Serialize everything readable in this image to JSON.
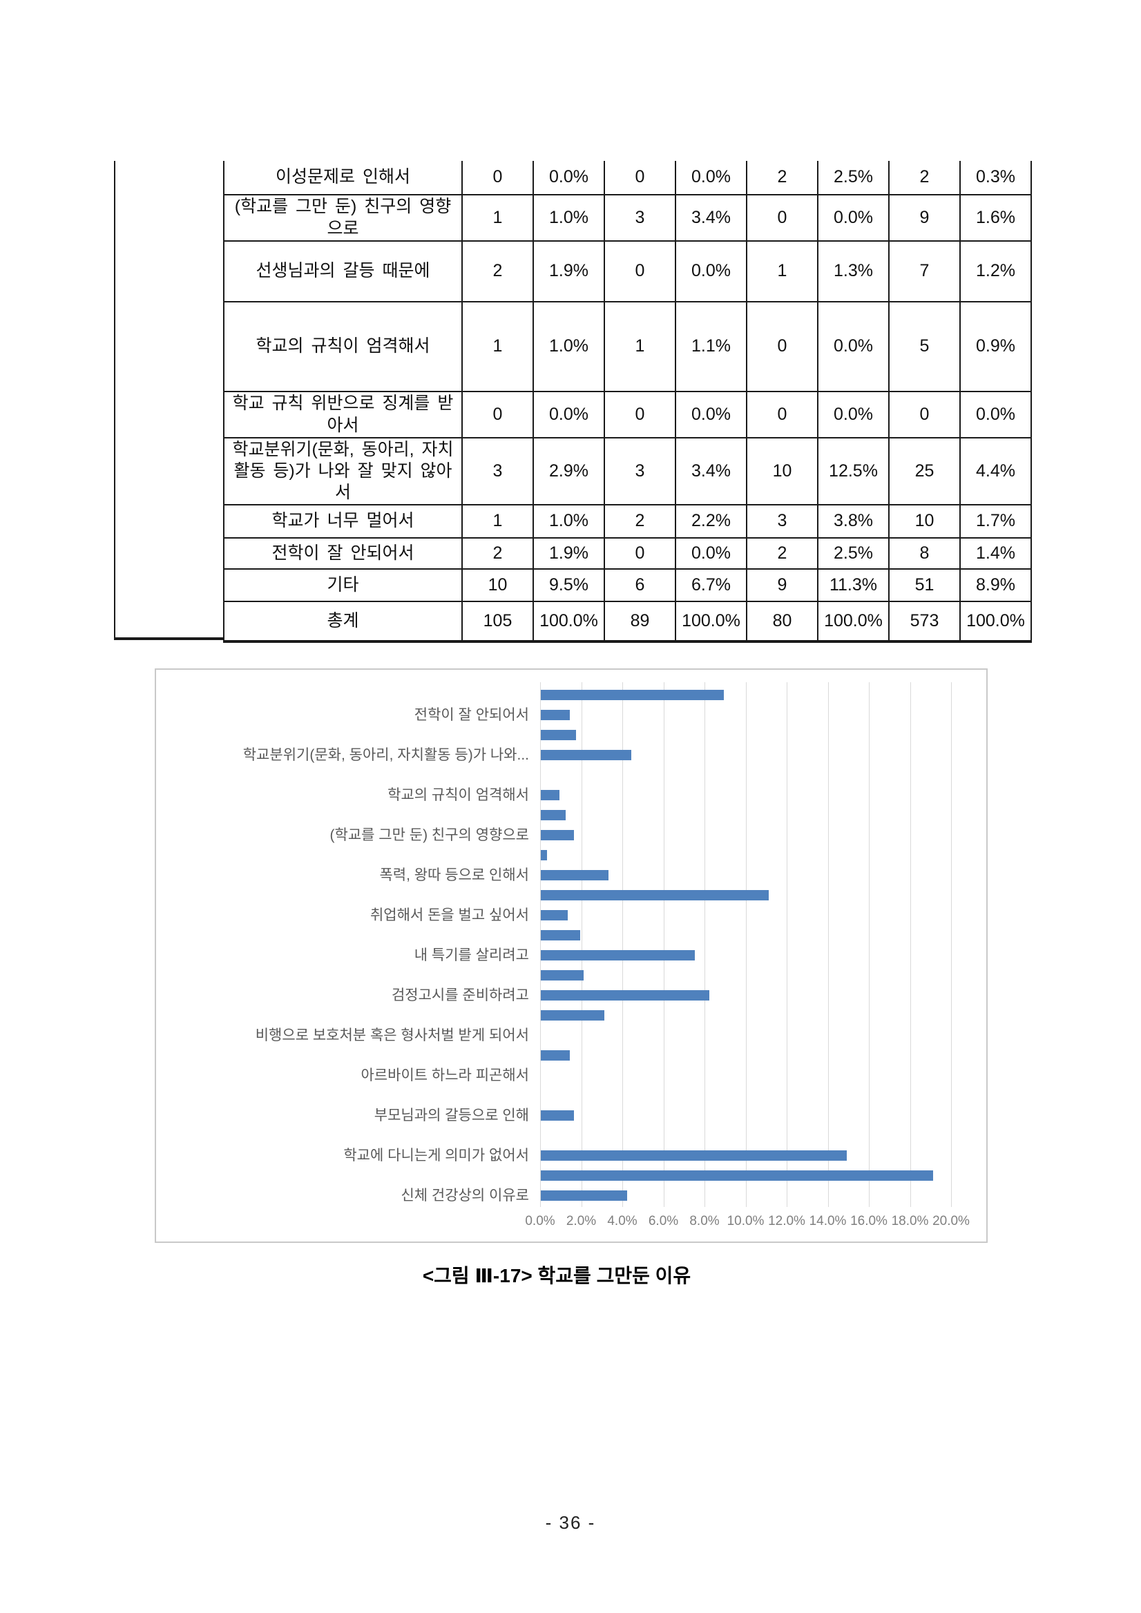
{
  "table": {
    "rows": [
      {
        "label": "이성문제로 인해서",
        "values": [
          "0",
          "0.0%",
          "0",
          "0.0%",
          "2",
          "2.5%",
          "2",
          "0.3%"
        ]
      },
      {
        "label": "(학교를 그만 둔) 친구의 영향으로",
        "values": [
          "1",
          "1.0%",
          "3",
          "3.4%",
          "0",
          "0.0%",
          "9",
          "1.6%"
        ]
      },
      {
        "label": "선생님과의 갈등 때문에",
        "values": [
          "2",
          "1.9%",
          "0",
          "0.0%",
          "1",
          "1.3%",
          "7",
          "1.2%"
        ]
      },
      {
        "label": "학교의 규칙이 엄격해서",
        "values": [
          "1",
          "1.0%",
          "1",
          "1.1%",
          "0",
          "0.0%",
          "5",
          "0.9%"
        ]
      },
      {
        "label": "학교 규칙 위반으로 징계를 받아서",
        "values": [
          "0",
          "0.0%",
          "0",
          "0.0%",
          "0",
          "0.0%",
          "0",
          "0.0%"
        ]
      },
      {
        "label": "학교분위기(문화, 동아리, 자치활동 등)가 나와 잘 맞지 않아서",
        "values": [
          "3",
          "2.9%",
          "3",
          "3.4%",
          "10",
          "12.5%",
          "25",
          "4.4%"
        ]
      },
      {
        "label": "학교가 너무 멀어서",
        "values": [
          "1",
          "1.0%",
          "2",
          "2.2%",
          "3",
          "3.8%",
          "10",
          "1.7%"
        ]
      },
      {
        "label": "전학이 잘 안되어서",
        "values": [
          "2",
          "1.9%",
          "0",
          "0.0%",
          "2",
          "2.5%",
          "8",
          "1.4%"
        ]
      },
      {
        "label": "기타",
        "values": [
          "10",
          "9.5%",
          "6",
          "6.7%",
          "9",
          "11.3%",
          "51",
          "8.9%"
        ]
      },
      {
        "label": "총계",
        "values": [
          "105",
          "100.0%",
          "89",
          "100.0%",
          "80",
          "100.0%",
          "573",
          "100.0%"
        ]
      }
    ]
  },
  "chart_data": {
    "type": "bar",
    "orientation": "horizontal",
    "row_order": "top-to-bottom",
    "rows": [
      {
        "label": "",
        "value": 8.9
      },
      {
        "label": "전학이 잘 안되어서",
        "value": 1.4
      },
      {
        "label": "",
        "value": 1.7
      },
      {
        "label": "학교분위기(문화, 동아리, 자치활동 등)가 나와...",
        "value": 4.4
      },
      {
        "label": "",
        "value": 0.0
      },
      {
        "label": "학교의 규칙이 엄격해서",
        "value": 0.9
      },
      {
        "label": "",
        "value": 1.2
      },
      {
        "label": "(학교를 그만 둔) 친구의 영향으로",
        "value": 1.6
      },
      {
        "label": "",
        "value": 0.3
      },
      {
        "label": "폭력, 왕따 등으로 인해서",
        "value": 3.3
      },
      {
        "label": "",
        "value": 11.1
      },
      {
        "label": "취업해서 돈을 벌고 싶어서",
        "value": 1.3
      },
      {
        "label": "",
        "value": 1.9
      },
      {
        "label": "내 특기를 살리려고",
        "value": 7.5
      },
      {
        "label": "",
        "value": 2.1
      },
      {
        "label": "검정고시를 준비하려고",
        "value": 8.2
      },
      {
        "label": "",
        "value": 3.1
      },
      {
        "label": "비행으로 보호처분 혹은 형사처벌 받게 되어서",
        "value": 0.0
      },
      {
        "label": "",
        "value": 1.4
      },
      {
        "label": "아르바이트 하느라 피곤해서",
        "value": 0.0
      },
      {
        "label": "",
        "value": 0.0
      },
      {
        "label": "부모님과의 갈등으로 인해",
        "value": 1.6
      },
      {
        "label": "",
        "value": 0.0
      },
      {
        "label": "학교에 다니는게 의미가 없어서",
        "value": 14.9
      },
      {
        "label": "",
        "value": 19.1
      },
      {
        "label": "신체 건강상의 이유로",
        "value": 4.2
      }
    ],
    "tick_labels": [
      "0.0%",
      "2.0%",
      "4.0%",
      "6.0%",
      "8.0%",
      "10.0%",
      "12.0%",
      "14.0%",
      "16.0%",
      "18.0%",
      "20.0%"
    ],
    "xlim": [
      0,
      20
    ],
    "grid": true,
    "bar_color": "#4f81bd",
    "grid_color": "#d9d9d9"
  },
  "caption": "<그림 Ⅲ-17> 학교를 그만둔 이유",
  "page_number": "- 36 -"
}
